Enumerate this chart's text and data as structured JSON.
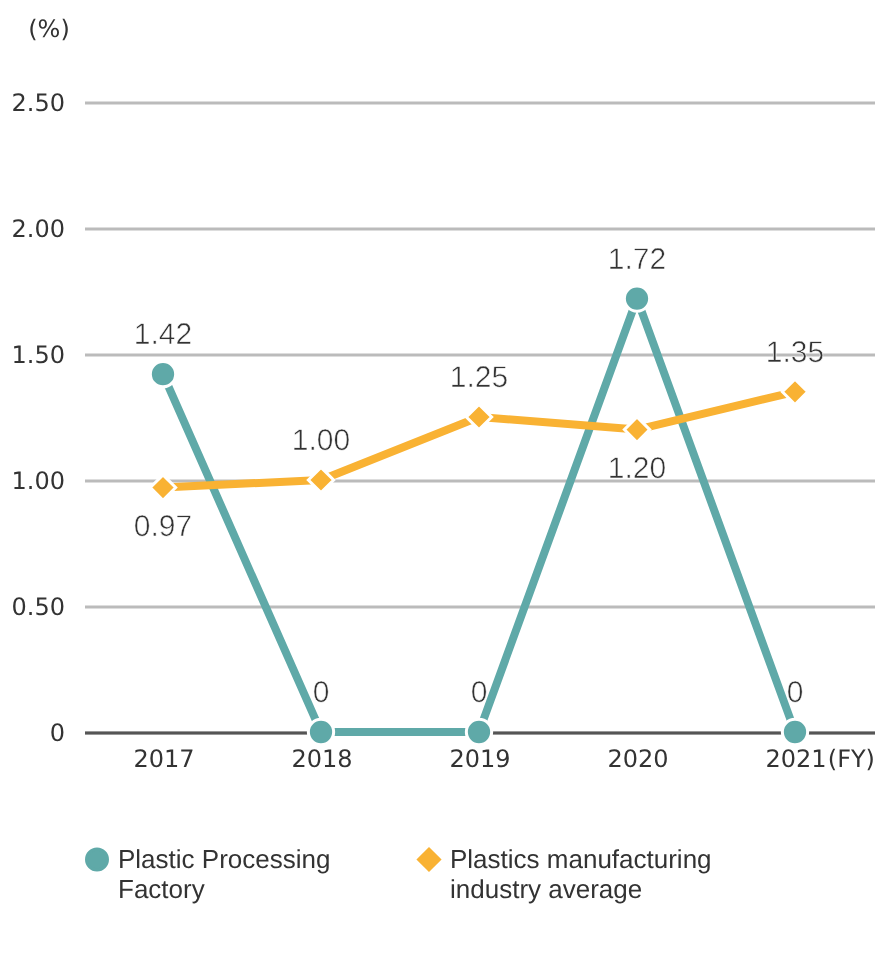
{
  "chart_data": {
    "type": "line",
    "ylabel": "(%)",
    "xlabel": "(FY)",
    "categories": [
      "2017",
      "2018",
      "2019",
      "2020",
      "2021"
    ],
    "series": [
      {
        "name": "Plastic Processing Factory",
        "color": "#5fa9a8",
        "marker": "circle",
        "values": [
          1.42,
          0,
          0,
          1.72,
          0
        ],
        "value_labels": [
          "1.42",
          "0",
          "0",
          "1.72",
          "0"
        ]
      },
      {
        "name": "Plastics manufacturing industry average",
        "color": "#f9b233",
        "marker": "diamond",
        "values": [
          0.97,
          1.0,
          1.25,
          1.2,
          1.35
        ],
        "value_labels": [
          "0.97",
          "1.00",
          "1.25",
          "1.20",
          "1.35"
        ]
      }
    ],
    "ylim": [
      0,
      2.5
    ],
    "yticks": [
      0,
      {
        "value": 0.5,
        "label": "0.50"
      },
      {
        "value": 1,
        "label": "1.00"
      },
      {
        "value": 1.5,
        "label": "1.50"
      },
      {
        "value": 2,
        "label": "2.00"
      },
      {
        "value": 2.5,
        "label": "2.50"
      }
    ],
    "grid": "y",
    "legend": "bottom",
    "line_style": "solid"
  }
}
